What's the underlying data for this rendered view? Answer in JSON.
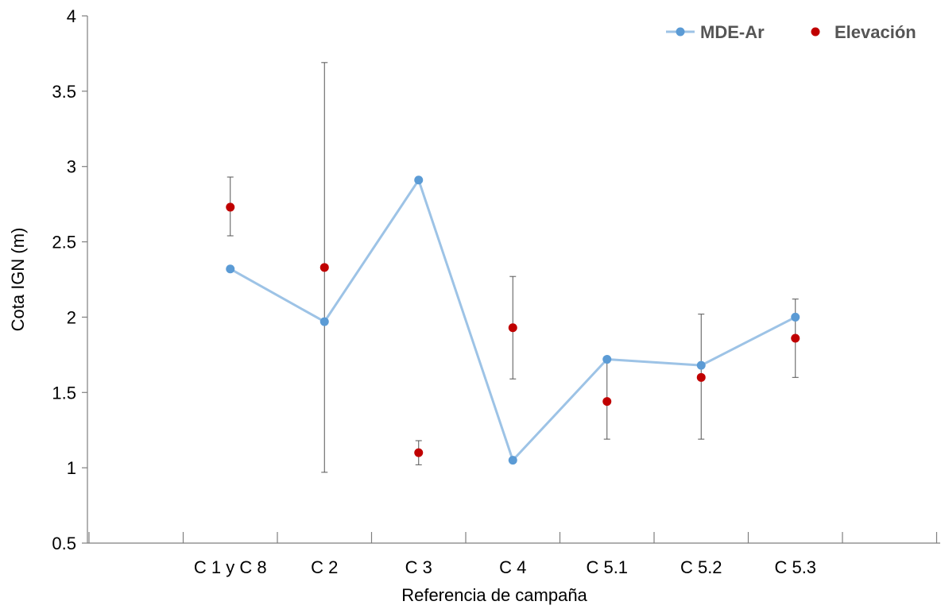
{
  "chart_data": {
    "type": "line",
    "categories": [
      "C 1 y C 8",
      "C 2",
      "C 3",
      "C 4",
      "C 5.1",
      "C 5.2",
      "C 5.3"
    ],
    "xlabel": "Referencia de campaña",
    "ylabel": "Cota IGN (m)",
    "ylim": [
      0.5,
      4
    ],
    "yticks": [
      "0.5",
      "1",
      "1.5",
      "2",
      "2.5",
      "3",
      "3.5",
      "4"
    ],
    "grid": false,
    "legend_position": "top-right",
    "series": [
      {
        "name": "MDE-Ar",
        "kind": "line-with-markers",
        "color": "#9dc3e6",
        "marker_color": "#5b9bd5",
        "values": [
          2.32,
          1.97,
          2.91,
          1.05,
          1.72,
          1.68,
          2.0
        ]
      },
      {
        "name": "Elevación",
        "kind": "scatter-with-error-bars",
        "color": "#c00000",
        "values": [
          2.73,
          2.33,
          1.1,
          1.93,
          1.44,
          1.6,
          1.86
        ],
        "error_low": [
          2.54,
          0.97,
          1.02,
          1.59,
          1.19,
          1.19,
          1.6
        ],
        "error_high": [
          2.93,
          3.69,
          1.18,
          2.27,
          1.72,
          2.02,
          2.12
        ]
      }
    ]
  }
}
